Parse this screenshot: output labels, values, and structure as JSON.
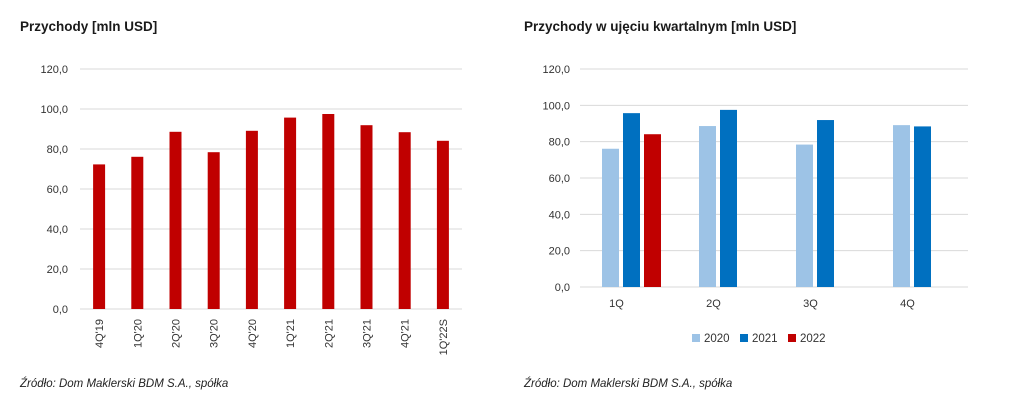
{
  "colors": {
    "bar_red": "#c00000",
    "c2020": "#9dc3e6",
    "c2021": "#0070c0",
    "c2022": "#c00000",
    "grid": "#d9d9d9"
  },
  "chart_data": [
    {
      "type": "bar",
      "title": "Przychody [mln USD]",
      "categories": [
        "4Q'19",
        "1Q'20",
        "2Q'20",
        "3Q'20",
        "4Q'20",
        "1Q'21",
        "2Q'21",
        "3Q'21",
        "4Q'21",
        "1Q'22S"
      ],
      "values": [
        72.3,
        76.1,
        88.6,
        78.4,
        89.1,
        95.7,
        97.5,
        91.9,
        88.4,
        84.1
      ],
      "ylim": [
        0,
        120
      ],
      "yticks": [
        "0,0",
        "20,0",
        "40,0",
        "60,0",
        "80,0",
        "100,0",
        "120,0"
      ],
      "xlabel": "",
      "ylabel": "",
      "grid": true,
      "source": "Źródło: Dom Maklerski BDM S.A., spółka"
    },
    {
      "type": "bar",
      "title": "Przychody w ujęciu kwartalnym [mln USD]",
      "categories": [
        "1Q",
        "2Q",
        "3Q",
        "4Q"
      ],
      "series": [
        {
          "name": "2020",
          "values": [
            76.1,
            88.6,
            78.4,
            89.1
          ]
        },
        {
          "name": "2021",
          "values": [
            95.7,
            97.5,
            91.9,
            88.4
          ]
        },
        {
          "name": "2022",
          "values": [
            84.1,
            null,
            null,
            null
          ]
        }
      ],
      "ylim": [
        0,
        120
      ],
      "yticks": [
        "0,0",
        "20,0",
        "40,0",
        "60,0",
        "80,0",
        "100,0",
        "120,0"
      ],
      "xlabel": "",
      "ylabel": "",
      "grid": true,
      "legend": "bottom",
      "source": "Źródło: Dom Maklerski BDM S.A., spółka"
    }
  ]
}
